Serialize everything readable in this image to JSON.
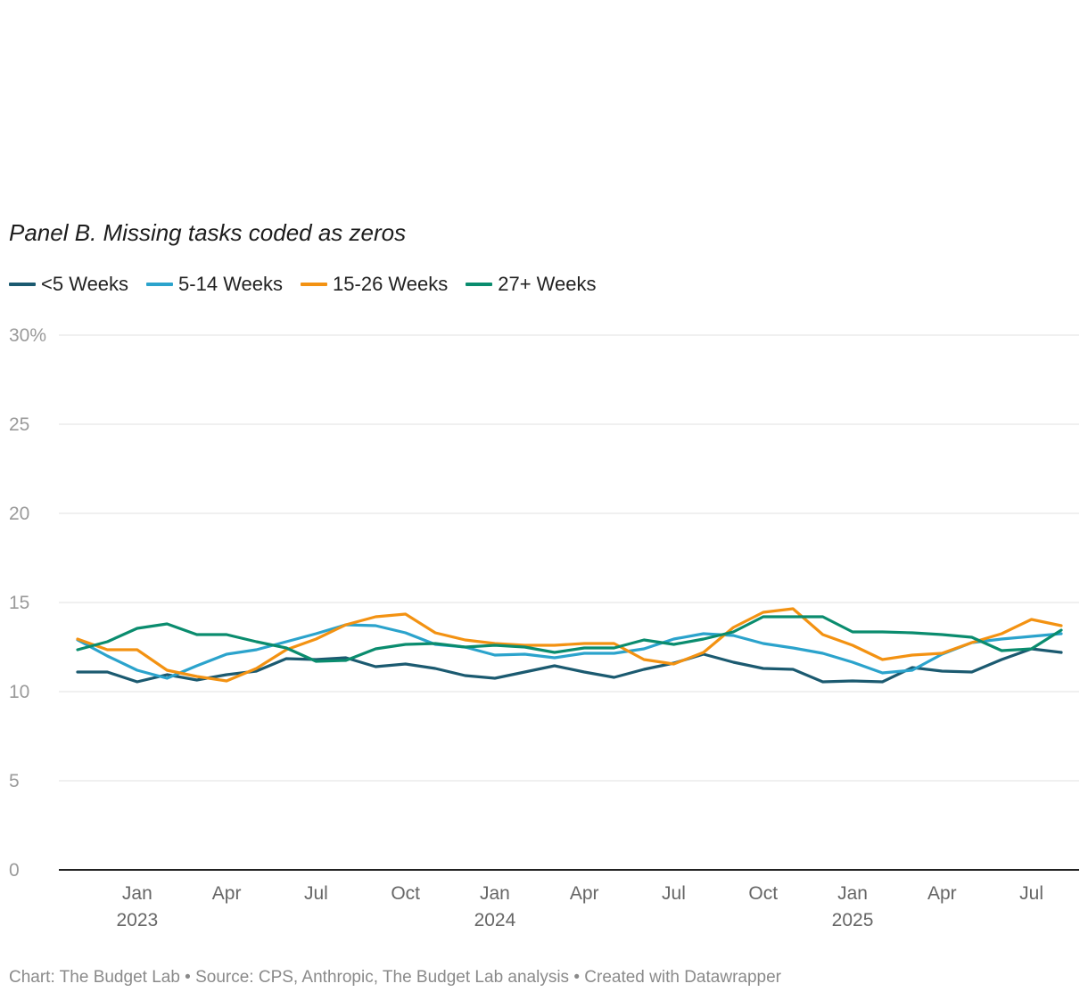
{
  "chart_data": {
    "type": "line",
    "title": "Panel B. Missing tasks coded as zeros",
    "xlabel": "",
    "ylabel": "",
    "ylim": [
      0,
      30
    ],
    "y_ticks": [
      {
        "value": 30,
        "label": "30%"
      },
      {
        "value": 25,
        "label": "25"
      },
      {
        "value": 20,
        "label": "20"
      },
      {
        "value": 15,
        "label": "15"
      },
      {
        "value": 10,
        "label": "10"
      },
      {
        "value": 5,
        "label": "5"
      },
      {
        "value": 0,
        "label": "0"
      }
    ],
    "x_start": "2022-11",
    "x_ticks": [
      {
        "index": 2,
        "label": "Jan",
        "year": "2023"
      },
      {
        "index": 5,
        "label": "Apr",
        "year": ""
      },
      {
        "index": 8,
        "label": "Jul",
        "year": ""
      },
      {
        "index": 11,
        "label": "Oct",
        "year": ""
      },
      {
        "index": 14,
        "label": "Jan",
        "year": "2024"
      },
      {
        "index": 17,
        "label": "Apr",
        "year": ""
      },
      {
        "index": 20,
        "label": "Jul",
        "year": ""
      },
      {
        "index": 23,
        "label": "Oct",
        "year": ""
      },
      {
        "index": 26,
        "label": "Jan",
        "year": "2025"
      },
      {
        "index": 29,
        "label": "Apr",
        "year": ""
      },
      {
        "index": 32,
        "label": "Jul",
        "year": ""
      }
    ],
    "series": [
      {
        "name": "<5 Weeks",
        "color": "#1b5a70",
        "values": [
          11.1,
          11.1,
          10.55,
          10.95,
          10.65,
          10.95,
          11.15,
          11.85,
          11.8,
          11.9,
          11.4,
          11.55,
          11.3,
          10.9,
          10.75,
          11.1,
          11.45,
          11.1,
          10.8,
          11.25,
          11.6,
          12.1,
          11.65,
          11.3,
          11.25,
          10.55,
          10.6,
          10.55,
          11.35,
          11.15,
          11.1,
          11.8,
          12.4,
          12.2
        ]
      },
      {
        "name": "5-14 Weeks",
        "color": "#2ba3cc",
        "values": [
          12.9,
          12.0,
          11.2,
          10.75,
          11.45,
          12.1,
          12.35,
          12.8,
          13.25,
          13.75,
          13.7,
          13.3,
          12.65,
          12.5,
          12.05,
          12.1,
          11.9,
          12.15,
          12.15,
          12.4,
          12.95,
          13.25,
          13.15,
          12.7,
          12.45,
          12.15,
          11.65,
          11.05,
          11.2,
          12.1,
          12.75,
          12.95,
          13.1,
          13.25
        ]
      },
      {
        "name": "15-26 Weeks",
        "color": "#f39212",
        "values": [
          12.95,
          12.35,
          12.35,
          11.2,
          10.85,
          10.6,
          11.3,
          12.35,
          12.95,
          13.75,
          14.2,
          14.35,
          13.3,
          12.9,
          12.7,
          12.6,
          12.6,
          12.7,
          12.7,
          11.8,
          11.55,
          12.2,
          13.6,
          14.45,
          14.65,
          13.2,
          12.6,
          11.8,
          12.05,
          12.15,
          12.75,
          13.25,
          14.05,
          13.7
        ]
      },
      {
        "name": "27+ Weeks",
        "color": "#0a8c6e",
        "values": [
          12.35,
          12.8,
          13.55,
          13.8,
          13.2,
          13.2,
          12.8,
          12.45,
          11.7,
          11.75,
          12.4,
          12.65,
          12.7,
          12.5,
          12.6,
          12.5,
          12.2,
          12.45,
          12.45,
          12.9,
          12.65,
          12.95,
          13.35,
          14.2,
          14.2,
          14.2,
          13.35,
          13.35,
          13.3,
          13.2,
          13.05,
          12.3,
          12.4,
          13.45
        ]
      }
    ]
  },
  "footer": "Chart: The Budget Lab • Source: CPS, Anthropic, The Budget Lab analysis • Created with Datawrapper"
}
